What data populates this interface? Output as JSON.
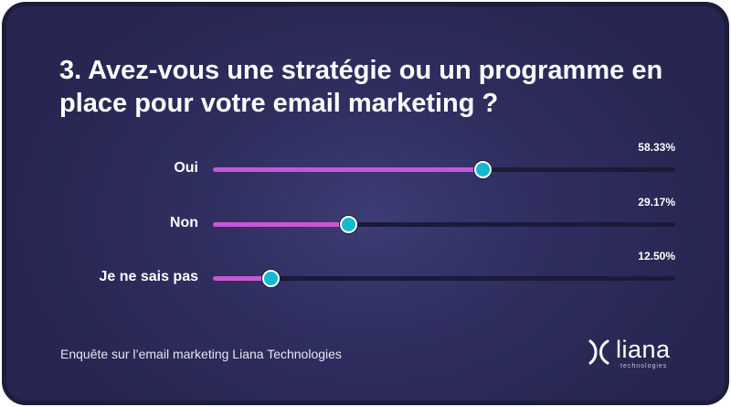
{
  "title": "3. Avez-vous une stratégie ou un programme en place pour votre email marketing ?",
  "chart_data": {
    "type": "bar",
    "title": "3. Avez-vous une stratégie ou un programme en place pour votre email marketing ?",
    "categories": [
      "Oui",
      "Non",
      "Je ne sais pas"
    ],
    "values": [
      58.33,
      29.17,
      12.5
    ],
    "value_labels": [
      "58.33%",
      "29.17%",
      "12.50%"
    ],
    "xlim": [
      0,
      100
    ],
    "grid": false,
    "legend": "none"
  },
  "footer": "Enquête sur l’email marketing Liana Technologies",
  "logo": {
    "word": "liana",
    "sub": "technologies"
  },
  "colors": {
    "fill": "#c757d6",
    "thumb": "#14b8cf",
    "track": "#1b1a3a",
    "background": "#2f2e5f"
  }
}
